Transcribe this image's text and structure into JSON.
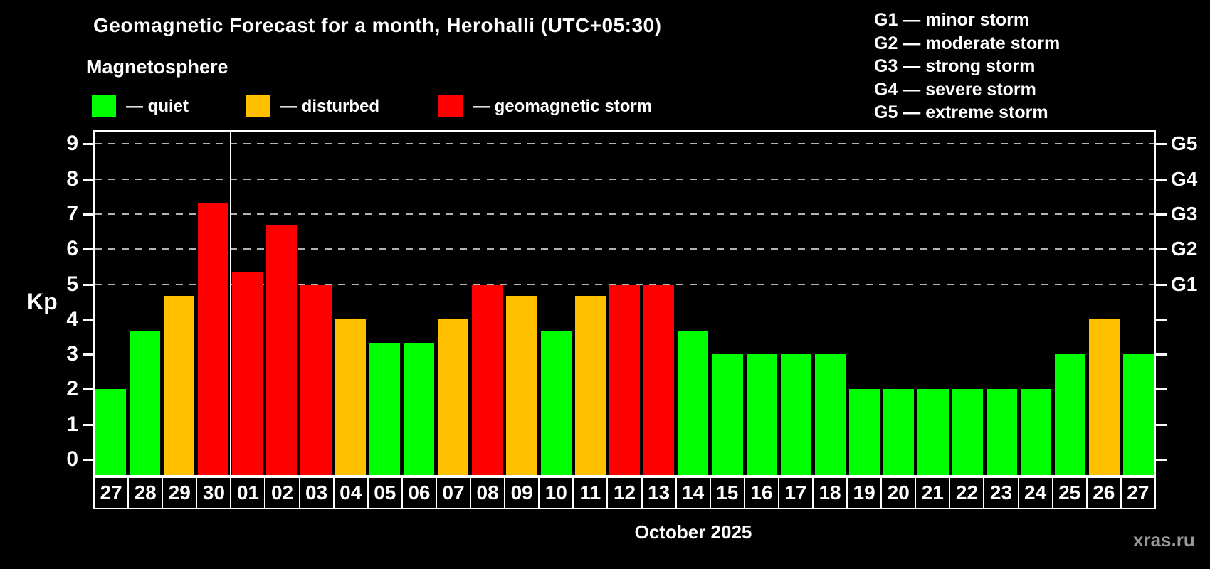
{
  "title": "Geomagnetic Forecast for a month, Herohalli (UTC+05:30)",
  "subtitle": "Magnetosphere",
  "legend": {
    "items": [
      {
        "label": "— quiet",
        "status": "quiet",
        "color": "#00ff00"
      },
      {
        "label": "— disturbed",
        "status": "disturbed",
        "color": "#ffc000"
      },
      {
        "label": "— geomagnetic storm",
        "status": "storm",
        "color": "#ff0000"
      }
    ]
  },
  "g_legend": {
    "items": [
      "G1 — minor storm",
      "G2 — moderate storm",
      "G3 — strong storm",
      "G4 — severe storm",
      "G5 — extreme storm"
    ]
  },
  "axis": {
    "ylabel": "Kp",
    "yticks": [
      0,
      1,
      2,
      3,
      4,
      5,
      6,
      7,
      8,
      9
    ],
    "right_labels": [
      {
        "kp": 5,
        "label": "G1"
      },
      {
        "kp": 6,
        "label": "G2"
      },
      {
        "kp": 7,
        "label": "G3"
      },
      {
        "kp": 8,
        "label": "G4"
      },
      {
        "kp": 9,
        "label": "G5"
      }
    ]
  },
  "xlabel": "October 2025",
  "watermark": "xras.ru",
  "chart_data": {
    "type": "bar",
    "title": "Geomagnetic Forecast for a month, Herohalli (UTC+05:30)",
    "xlabel": "October 2025",
    "ylabel": "Kp",
    "ylim": [
      0,
      9
    ],
    "grid": "horizontal dashed lines at Kp 5-9 (G1-G5 levels)",
    "legend_position": "top-left",
    "gridlines_at": [
      5,
      6,
      7,
      8,
      9
    ],
    "month_separator_after_index": 3,
    "categories": [
      "27",
      "28",
      "29",
      "30",
      "01",
      "02",
      "03",
      "04",
      "05",
      "06",
      "07",
      "08",
      "09",
      "10",
      "11",
      "12",
      "13",
      "14",
      "15",
      "16",
      "17",
      "18",
      "19",
      "20",
      "21",
      "22",
      "23",
      "24",
      "25",
      "26",
      "27"
    ],
    "values": [
      2,
      3.67,
      4.67,
      7.33,
      5.33,
      6.67,
      5,
      4,
      3.33,
      3.33,
      4,
      5,
      4.67,
      3.67,
      4.67,
      5,
      5,
      3.67,
      3,
      3,
      3,
      3,
      2,
      2,
      2,
      2,
      2,
      2,
      3,
      4,
      3
    ],
    "statuses": [
      "quiet",
      "quiet",
      "disturbed",
      "storm",
      "storm",
      "storm",
      "storm",
      "disturbed",
      "quiet",
      "quiet",
      "disturbed",
      "storm",
      "disturbed",
      "quiet",
      "disturbed",
      "storm",
      "storm",
      "quiet",
      "quiet",
      "quiet",
      "quiet",
      "quiet",
      "quiet",
      "quiet",
      "quiet",
      "quiet",
      "quiet",
      "quiet",
      "quiet",
      "disturbed",
      "quiet"
    ],
    "status_colors": {
      "quiet": "#00ff00",
      "disturbed": "#ffc000",
      "storm": "#ff0000"
    }
  }
}
